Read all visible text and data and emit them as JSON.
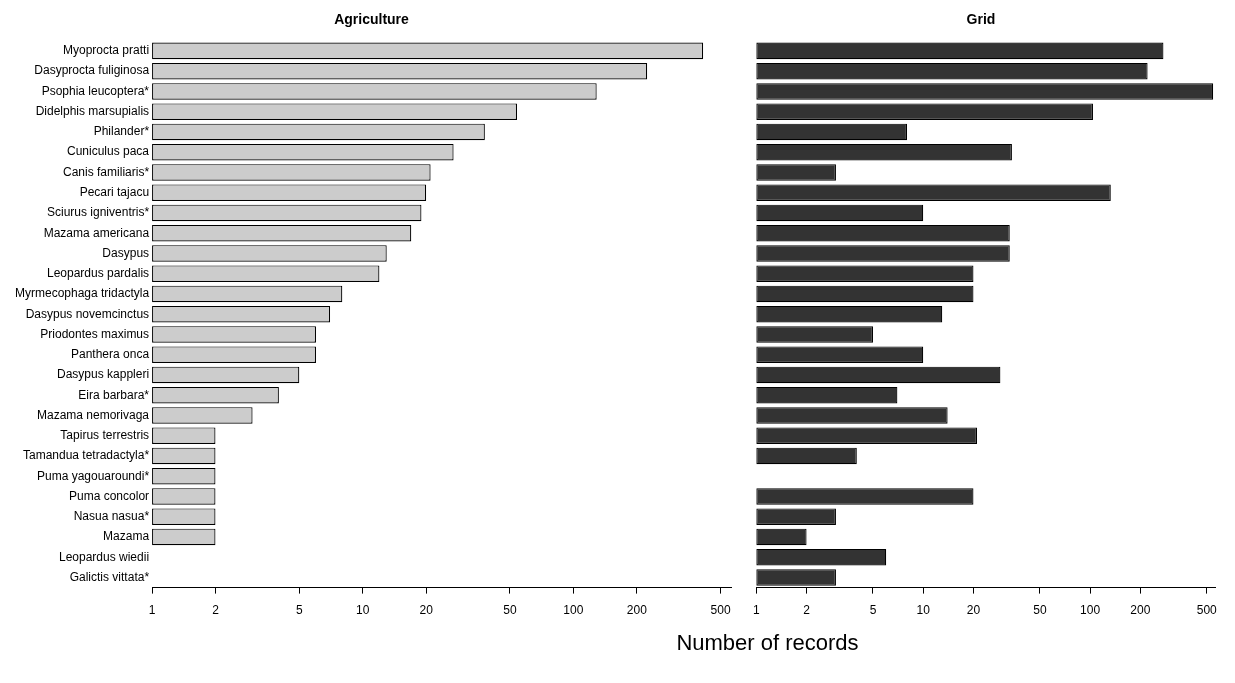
{
  "chart_data": [
    {
      "type": "bar",
      "title": "Agriculture",
      "xlabel": "Number of records",
      "orientation": "horizontal",
      "log": "x",
      "grid": false,
      "legend": false,
      "color": "#cccccc",
      "categories": [
        "Myoprocta pratti",
        "Dasyprocta fuliginosa",
        "Psophia leucoptera*",
        "Didelphis marsupialis",
        "Philander*",
        "Cuniculus paca",
        "Canis familiaris*",
        "Pecari tajacu",
        "Sciurus igniventris*",
        "Mazama americana",
        "Dasypus",
        "Leopardus pardalis",
        "Myrmecophaga tridactyla",
        "Dasypus novemcinctus",
        "Priodontes maximus",
        "Panthera onca",
        "Dasypus kappleri",
        "Eira barbara*",
        "Mazama nemorivaga",
        "Tapirus terrestris",
        "Tamandua tetradactyla*",
        "Puma yagouaroundi*",
        "Puma concolor",
        "Nasua nasua*",
        "Mazama",
        "Leopardus wiedii",
        "Galictis vittata*"
      ],
      "values": [
        413,
        224,
        129,
        54,
        38,
        27,
        21,
        20,
        19,
        17,
        13,
        12,
        8,
        7,
        6,
        6,
        5,
        4,
        3,
        2,
        2,
        2,
        2,
        2,
        2,
        1,
        1
      ],
      "xlim": [
        1,
        560
      ],
      "xticks": [
        1,
        2,
        5,
        10,
        20,
        50,
        100,
        200,
        500
      ]
    },
    {
      "type": "bar",
      "title": "Grid",
      "orientation": "horizontal",
      "log": "x",
      "grid": false,
      "legend": false,
      "color": "#333333",
      "tick_labels": "x",
      "categories": [
        null,
        null,
        null,
        null,
        null,
        null,
        null,
        null,
        null,
        null,
        null,
        null,
        null,
        null,
        null,
        null,
        null,
        null,
        null,
        null,
        null,
        null,
        null,
        null,
        null,
        null,
        null
      ],
      "values": [
        275,
        221,
        546,
        104,
        8,
        34,
        3,
        133,
        10,
        33,
        33,
        20,
        20,
        13,
        5,
        10,
        29,
        7,
        14,
        21,
        4,
        1,
        20,
        3,
        2,
        6,
        3
      ],
      "xlim": [
        1,
        560
      ],
      "xticks": [
        1,
        2,
        5,
        10,
        20,
        50,
        100,
        200,
        500
      ]
    }
  ]
}
